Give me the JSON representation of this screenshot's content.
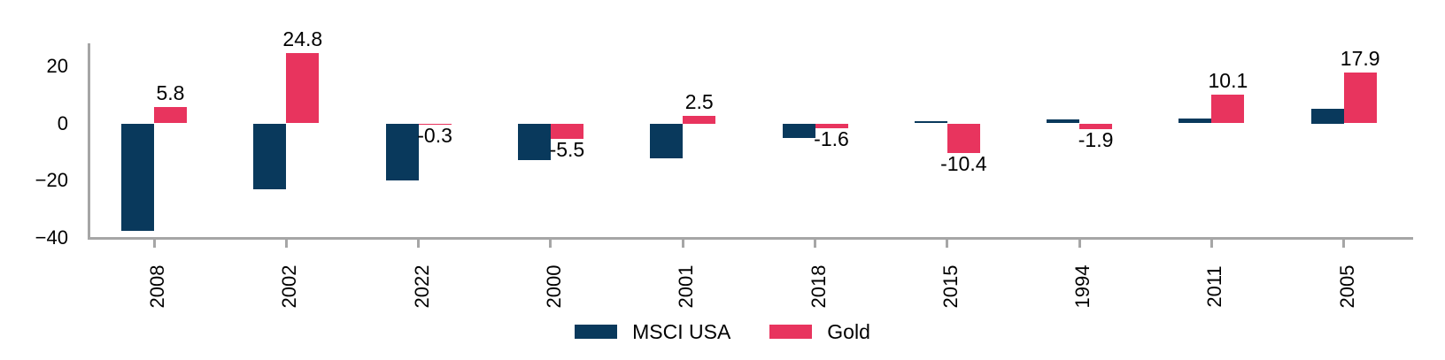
{
  "chart_data": {
    "type": "bar",
    "title": "",
    "categories": [
      "2008",
      "2002",
      "2022",
      "2000",
      "2001",
      "2018",
      "2015",
      "1994",
      "2011",
      "2005"
    ],
    "series": [
      {
        "name": "MSCI USA",
        "color": "#09395c",
        "values": [
          -37.6,
          -23.1,
          -19.9,
          -12.8,
          -12.4,
          -5.0,
          0.9,
          1.3,
          1.8,
          5.0
        ]
      },
      {
        "name": "Gold",
        "color": "#e8345e",
        "values": [
          5.8,
          24.8,
          -0.3,
          -5.5,
          2.5,
          -1.6,
          -10.4,
          -1.9,
          10.1,
          17.9
        ],
        "data_labels": [
          "5.8",
          "24.8",
          "-0.3",
          "-5.5",
          "2.5",
          "-1.6",
          "-10.4",
          "-1.9",
          "10.1",
          "17.9"
        ]
      }
    ],
    "y_axis": {
      "ticks": [
        {
          "label": "20",
          "value": 20
        },
        {
          "label": "0",
          "value": 0
        },
        {
          "label": "−20",
          "value": -20
        },
        {
          "label": "−40",
          "value": -40
        }
      ],
      "range": [
        -40.5,
        29.3
      ]
    },
    "x_axis": {
      "tick_label_rotation": "vertical"
    },
    "legend": {
      "position": "bottom-center"
    },
    "grid": false,
    "colors": {
      "axis": "#a6a6a6",
      "text": "#000000",
      "background": "#ffffff"
    }
  }
}
